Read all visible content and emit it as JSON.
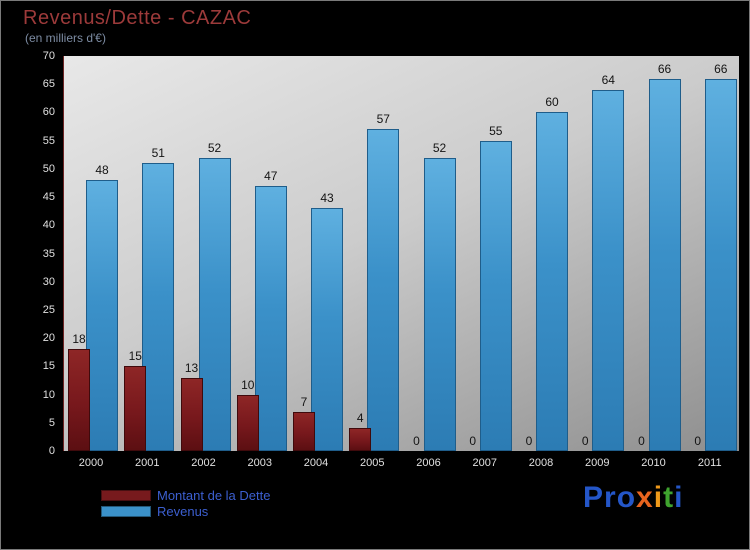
{
  "header": {
    "title": "Revenus/Dette - CAZAC",
    "subtitle": "(en milliers d'€)"
  },
  "chart_data": {
    "type": "bar",
    "title": "Revenus/Dette - CAZAC",
    "subtitle": "(en milliers d'€)",
    "categories": [
      "2000",
      "2001",
      "2002",
      "2003",
      "2004",
      "2005",
      "2006",
      "2007",
      "2008",
      "2009",
      "2010",
      "2011"
    ],
    "series": [
      {
        "name": "Montant de la Dette",
        "color": "#771a1d",
        "values": [
          18,
          15,
          13,
          10,
          7,
          4,
          0,
          0,
          0,
          0,
          0,
          0
        ]
      },
      {
        "name": "Revenus",
        "color": "#3b91c9",
        "values": [
          48,
          51,
          52,
          47,
          43,
          57,
          52,
          55,
          60,
          64,
          66,
          66
        ]
      }
    ],
    "xlabel": "",
    "ylabel": "",
    "ylim": [
      0,
      70
    ],
    "ytick_step": 5,
    "grid": false,
    "legend_position": "bottom-left",
    "value_labels": true
  },
  "legend": {
    "items": [
      {
        "label": "Montant de la Dette",
        "color": "#771a1d"
      },
      {
        "label": "Revenus",
        "color": "#3b91c9"
      }
    ]
  },
  "logo": {
    "text": "Proxiti",
    "letters": [
      {
        "ch": "P",
        "color": "#2456c8"
      },
      {
        "ch": "r",
        "color": "#2456c8"
      },
      {
        "ch": "o",
        "color": "#2456c8"
      },
      {
        "ch": "x",
        "color": "#e8641e"
      },
      {
        "ch": "i",
        "color": "#f09a1a"
      },
      {
        "ch": "t",
        "color": "#3fa32e"
      },
      {
        "ch": "i",
        "color": "#2456c8"
      }
    ]
  }
}
